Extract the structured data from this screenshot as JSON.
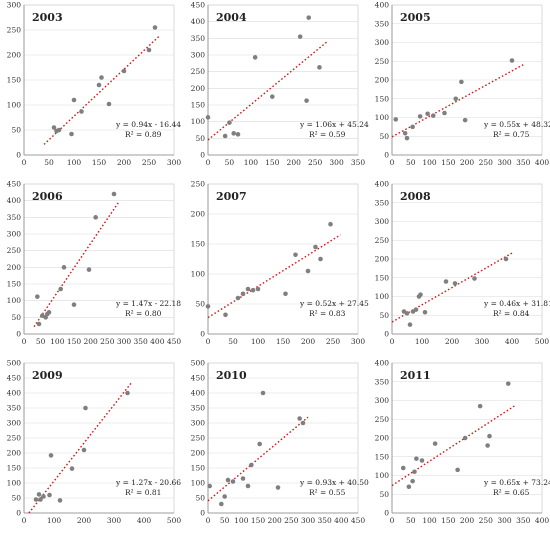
{
  "chart_data": [
    {
      "type": "scatter",
      "title": "2003",
      "xlim": [
        0,
        300
      ],
      "ylim": [
        0,
        300
      ],
      "xticks": [
        0,
        50,
        100,
        150,
        200,
        250,
        300
      ],
      "yticks": [
        0,
        50,
        100,
        150,
        200,
        250,
        300
      ],
      "points": [
        [
          60,
          55
        ],
        [
          65,
          48
        ],
        [
          70,
          50
        ],
        [
          95,
          42
        ],
        [
          100,
          110
        ],
        [
          115,
          87
        ],
        [
          150,
          140
        ],
        [
          155,
          155
        ],
        [
          170,
          102
        ],
        [
          200,
          168
        ],
        [
          250,
          210
        ],
        [
          262,
          255
        ]
      ],
      "equation": "y = 0.94x - 16.44",
      "r2": "R² = 0.89",
      "trend": {
        "slope": 0.94,
        "intercept": -16.44,
        "x_range": [
          40,
          270
        ]
      }
    },
    {
      "type": "scatter",
      "title": "2004",
      "xlim": [
        0,
        350
      ],
      "ylim": [
        0,
        450
      ],
      "xticks": [
        0,
        50,
        100,
        150,
        200,
        250,
        300,
        350
      ],
      "yticks": [
        0,
        50,
        100,
        150,
        200,
        250,
        300,
        350,
        400,
        450
      ],
      "points": [
        [
          0,
          113
        ],
        [
          40,
          57
        ],
        [
          50,
          97
        ],
        [
          60,
          65
        ],
        [
          70,
          62
        ],
        [
          110,
          293
        ],
        [
          150,
          175
        ],
        [
          215,
          355
        ],
        [
          230,
          163
        ],
        [
          235,
          412
        ],
        [
          260,
          263
        ]
      ],
      "equation": "y = 1.06x + 45.24",
      "r2": "R² = 0.59",
      "trend": {
        "slope": 1.06,
        "intercept": 45.24,
        "x_range": [
          0,
          280
        ]
      }
    },
    {
      "type": "scatter",
      "title": "2005",
      "xlim": [
        0,
        400
      ],
      "ylim": [
        0,
        400
      ],
      "xticks": [
        0,
        50,
        100,
        150,
        200,
        250,
        300,
        350,
        400
      ],
      "yticks": [
        0,
        50,
        100,
        150,
        200,
        250,
        300,
        350,
        400
      ],
      "points": [
        [
          10,
          95
        ],
        [
          35,
          58
        ],
        [
          40,
          45
        ],
        [
          55,
          75
        ],
        [
          75,
          103
        ],
        [
          95,
          110
        ],
        [
          110,
          105
        ],
        [
          140,
          112
        ],
        [
          170,
          150
        ],
        [
          185,
          195
        ],
        [
          195,
          93
        ],
        [
          320,
          252
        ]
      ],
      "equation": "y = 0.55x + 48.32",
      "r2": "R² = 0.75",
      "trend": {
        "slope": 0.55,
        "intercept": 48.32,
        "x_range": [
          0,
          350
        ]
      }
    },
    {
      "type": "scatter",
      "title": "2006",
      "xlim": [
        0,
        450
      ],
      "ylim": [
        0,
        450
      ],
      "xticks": [
        0,
        50,
        100,
        150,
        200,
        250,
        300,
        350,
        400,
        450
      ],
      "yticks": [
        0,
        50,
        100,
        150,
        200,
        250,
        300,
        350,
        400,
        450
      ],
      "points": [
        [
          40,
          112
        ],
        [
          45,
          30
        ],
        [
          55,
          55
        ],
        [
          65,
          50
        ],
        [
          70,
          60
        ],
        [
          75,
          65
        ],
        [
          110,
          135
        ],
        [
          120,
          200
        ],
        [
          150,
          88
        ],
        [
          195,
          193
        ],
        [
          215,
          350
        ],
        [
          270,
          420
        ]
      ],
      "equation": "y = 1.47x - 22.18",
      "r2": "R² = 0.80",
      "trend": {
        "slope": 1.47,
        "intercept": -22.18,
        "x_range": [
          30,
          285
        ]
      }
    },
    {
      "type": "scatter",
      "title": "2007",
      "xlim": [
        0,
        300
      ],
      "ylim": [
        0,
        250
      ],
      "xticks": [
        0,
        50,
        100,
        150,
        200,
        250,
        300
      ],
      "yticks": [
        0,
        50,
        100,
        150,
        200,
        250
      ],
      "points": [
        [
          0,
          46
        ],
        [
          35,
          32
        ],
        [
          60,
          60
        ],
        [
          70,
          67
        ],
        [
          80,
          75
        ],
        [
          90,
          73
        ],
        [
          100,
          75
        ],
        [
          155,
          67
        ],
        [
          175,
          132
        ],
        [
          200,
          105
        ],
        [
          215,
          145
        ],
        [
          225,
          125
        ],
        [
          245,
          183
        ]
      ],
      "equation": "y = 0.52x + 27.45",
      "r2": "R² = 0.83",
      "trend": {
        "slope": 0.52,
        "intercept": 27.45,
        "x_range": [
          0,
          265
        ]
      }
    },
    {
      "type": "scatter",
      "title": "2008",
      "xlim": [
        0,
        500
      ],
      "ylim": [
        0,
        400
      ],
      "xticks": [
        0,
        100,
        200,
        300,
        400,
        500
      ],
      "yticks": [
        0,
        50,
        100,
        150,
        200,
        250,
        300,
        350,
        400
      ],
      "points": [
        [
          40,
          60
        ],
        [
          50,
          55
        ],
        [
          60,
          25
        ],
        [
          70,
          60
        ],
        [
          80,
          65
        ],
        [
          90,
          100
        ],
        [
          95,
          105
        ],
        [
          110,
          58
        ],
        [
          180,
          140
        ],
        [
          210,
          135
        ],
        [
          275,
          148
        ],
        [
          380,
          200
        ]
      ],
      "equation": "y = 0.46x + 31.81",
      "r2": "R² = 0.84",
      "trend": {
        "slope": 0.46,
        "intercept": 31.81,
        "x_range": [
          0,
          400
        ]
      }
    },
    {
      "type": "scatter",
      "title": "2009",
      "xlim": [
        0,
        500
      ],
      "ylim": [
        0,
        500
      ],
      "xticks": [
        0,
        100,
        200,
        300,
        400,
        500
      ],
      "yticks": [
        0,
        50,
        100,
        150,
        200,
        250,
        300,
        350,
        400,
        450,
        500
      ],
      "points": [
        [
          40,
          45
        ],
        [
          50,
          62
        ],
        [
          55,
          45
        ],
        [
          65,
          55
        ],
        [
          85,
          60
        ],
        [
          90,
          192
        ],
        [
          120,
          42
        ],
        [
          160,
          148
        ],
        [
          200,
          210
        ],
        [
          205,
          350
        ],
        [
          345,
          400
        ]
      ],
      "equation": "y = 1.27x - 20.66",
      "r2": "R² = 0.81",
      "trend": {
        "slope": 1.27,
        "intercept": -20.66,
        "x_range": [
          15,
          360
        ]
      }
    },
    {
      "type": "scatter",
      "title": "2010",
      "xlim": [
        0,
        450
      ],
      "ylim": [
        0,
        500
      ],
      "xticks": [
        0,
        50,
        100,
        150,
        200,
        250,
        300,
        350,
        400,
        450
      ],
      "yticks": [
        0,
        50,
        100,
        150,
        200,
        250,
        300,
        350,
        400,
        450,
        500
      ],
      "points": [
        [
          5,
          90
        ],
        [
          40,
          30
        ],
        [
          50,
          55
        ],
        [
          60,
          110
        ],
        [
          75,
          105
        ],
        [
          105,
          115
        ],
        [
          120,
          90
        ],
        [
          130,
          160
        ],
        [
          155,
          230
        ],
        [
          165,
          400
        ],
        [
          210,
          85
        ],
        [
          275,
          315
        ],
        [
          285,
          300
        ]
      ],
      "equation": "y = 0.93x + 40.50",
      "r2": "R² = 0.55",
      "trend": {
        "slope": 0.93,
        "intercept": 40.5,
        "x_range": [
          0,
          300
        ]
      }
    },
    {
      "type": "scatter",
      "title": "2011",
      "xlim": [
        0,
        400
      ],
      "ylim": [
        0,
        400
      ],
      "xticks": [
        0,
        50,
        100,
        150,
        200,
        250,
        300,
        350,
        400
      ],
      "yticks": [
        0,
        50,
        100,
        150,
        200,
        250,
        300,
        350,
        400
      ],
      "points": [
        [
          30,
          120
        ],
        [
          45,
          70
        ],
        [
          55,
          85
        ],
        [
          60,
          110
        ],
        [
          65,
          145
        ],
        [
          80,
          140
        ],
        [
          115,
          185
        ],
        [
          175,
          115
        ],
        [
          195,
          200
        ],
        [
          235,
          285
        ],
        [
          255,
          180
        ],
        [
          260,
          205
        ],
        [
          310,
          345
        ]
      ],
      "equation": "y = 0.65x + 73.24",
      "r2": "R² = 0.65",
      "trend": {
        "slope": 0.65,
        "intercept": 73.24,
        "x_range": [
          0,
          330
        ]
      }
    }
  ]
}
